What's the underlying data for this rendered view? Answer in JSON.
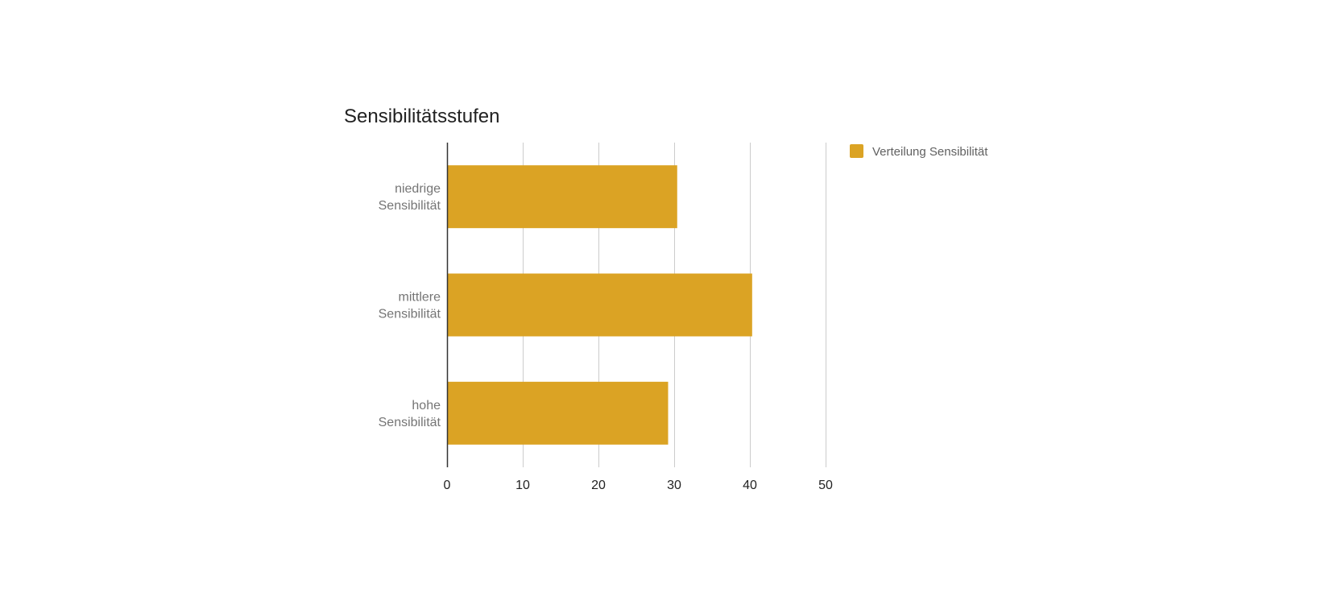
{
  "chart_data": {
    "type": "bar",
    "orientation": "horizontal",
    "title": "Sensibilitätsstufen",
    "categories": [
      [
        "niedrige",
        "Sensibilität"
      ],
      [
        "mittlere",
        "Sensibilität"
      ],
      [
        "hohe",
        "Sensibilität"
      ]
    ],
    "series": [
      {
        "name": "Verteilung Sensibilität",
        "color": "#DBA324",
        "values": [
          30.4,
          40.3,
          29.2
        ]
      }
    ],
    "xlim": [
      0,
      50
    ],
    "xticks": [
      0,
      10,
      20,
      30,
      40,
      50
    ],
    "grid": true,
    "legend_position": "right"
  }
}
